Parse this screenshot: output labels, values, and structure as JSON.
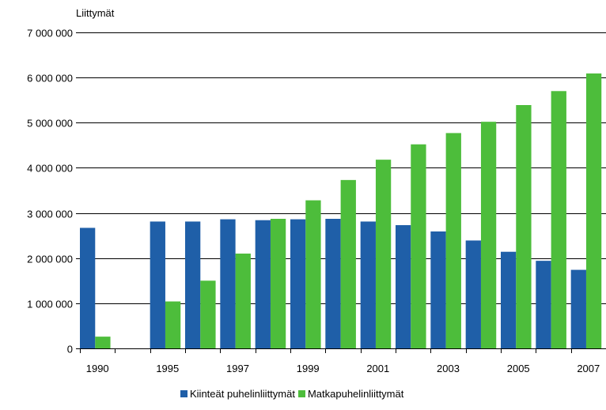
{
  "chart_data": {
    "type": "bar",
    "ylabel": "Liittymät",
    "ylim": [
      0,
      7000000
    ],
    "yticks": [
      0,
      1000000,
      2000000,
      3000000,
      4000000,
      5000000,
      6000000,
      7000000
    ],
    "ytick_labels": [
      "0",
      "1 000 000",
      "2 000 000",
      "3 000 000",
      "4 000 000",
      "5 000 000",
      "6 000 000",
      "7 000 000"
    ],
    "categories": [
      "1990",
      "",
      "1995",
      "1996",
      "1997",
      "1998",
      "1999",
      "2000",
      "2001",
      "2002",
      "2003",
      "2004",
      "2005",
      "2006",
      "2007"
    ],
    "xtick_labels": [
      "1990",
      "",
      "1995",
      "",
      "1997",
      "",
      "1999",
      "",
      "2001",
      "",
      "2003",
      "",
      "2005",
      "",
      "2007"
    ],
    "series": [
      {
        "name": "Kiinteät puhelinliittymät",
        "color": "#1f5fa8",
        "values": [
          2670000,
          null,
          2810000,
          2810000,
          2860000,
          2840000,
          2860000,
          2870000,
          2810000,
          2730000,
          2590000,
          2390000,
          2140000,
          1940000,
          1740000
        ]
      },
      {
        "name": "Matkapuhelinliittymät",
        "color": "#4dbd3b",
        "values": [
          260000,
          null,
          1040000,
          1500000,
          2100000,
          2870000,
          3280000,
          3730000,
          4180000,
          4520000,
          4770000,
          5020000,
          5390000,
          5700000,
          6090000
        ]
      }
    ],
    "grid": true,
    "legend_position": "bottom"
  }
}
